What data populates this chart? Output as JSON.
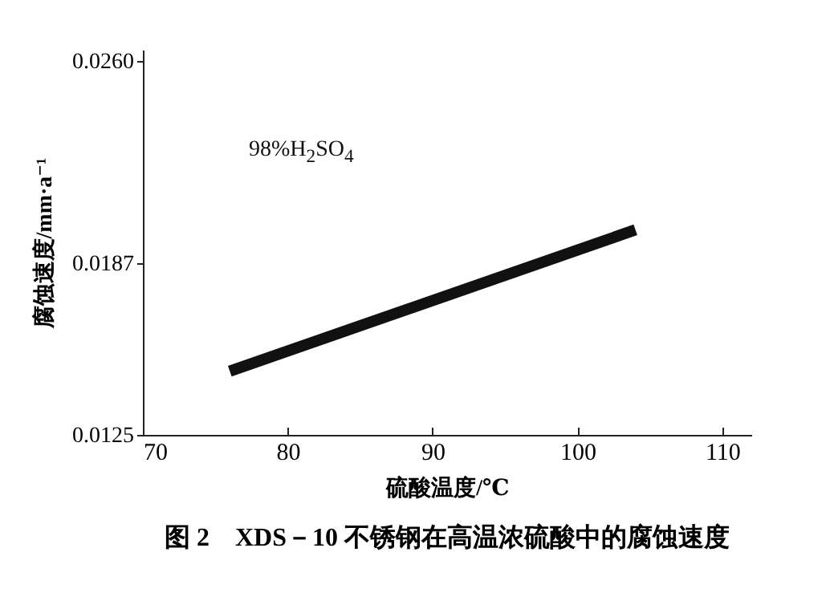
{
  "chart_data": {
    "type": "line",
    "title": "图 2　XDS－10 不锈钢在高温浓硫酸中的腐蚀速度",
    "xlabel": "硫酸温度/℃",
    "ylabel": "腐蚀速度/mm·a⁻¹",
    "annotations": [
      "98%H$_{2}$SO$_{4}$"
    ],
    "x": [
      76,
      104
    ],
    "series": [
      {
        "color": "#111111",
        "values": [
          0.0148,
          0.0199
        ]
      }
    ],
    "xlim": [
      70,
      112
    ],
    "xticks": [
      70,
      80,
      90,
      100,
      110
    ],
    "ylim": [
      0.0125,
      0.0264
    ],
    "yticks": [
      0.0125,
      0.0187,
      {
        "value": 0.026,
        "label": "0.0260"
      }
    ],
    "grid": false,
    "marker": "none",
    "line_style": "solid"
  }
}
